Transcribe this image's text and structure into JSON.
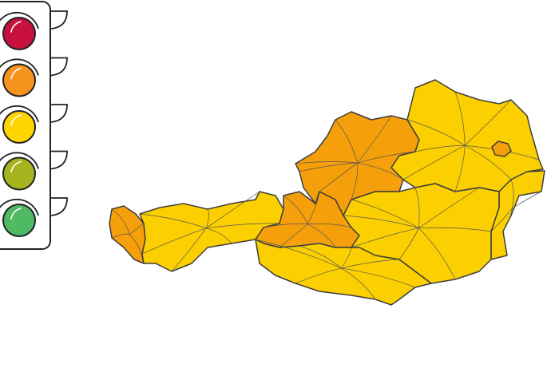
{
  "traffic_light": {
    "lamps": [
      {
        "level": "red",
        "color": "#c8103f"
      },
      {
        "level": "orange",
        "color": "#f7941d"
      },
      {
        "level": "yellow",
        "color": "#ffd500"
      },
      {
        "level": "yellow-green",
        "color": "#a6b51f"
      },
      {
        "level": "green",
        "color": "#4fb964"
      }
    ]
  },
  "map": {
    "country": "Austria",
    "regions": [
      {
        "id": "vorarlberg",
        "level": "orange"
      },
      {
        "id": "tyrol",
        "level": "yellow"
      },
      {
        "id": "salzburg",
        "level": "orange"
      },
      {
        "id": "upper-austria",
        "level": "orange"
      },
      {
        "id": "lower-austria",
        "level": "yellow"
      },
      {
        "id": "vienna",
        "level": "orange"
      },
      {
        "id": "burgenland",
        "level": "yellow"
      },
      {
        "id": "styria",
        "level": "yellow"
      },
      {
        "id": "carinthia",
        "level": "yellow"
      }
    ],
    "colors": {
      "orange": "#f5a00a",
      "yellow": "#fcd000",
      "border": "#3d3d3d"
    }
  }
}
